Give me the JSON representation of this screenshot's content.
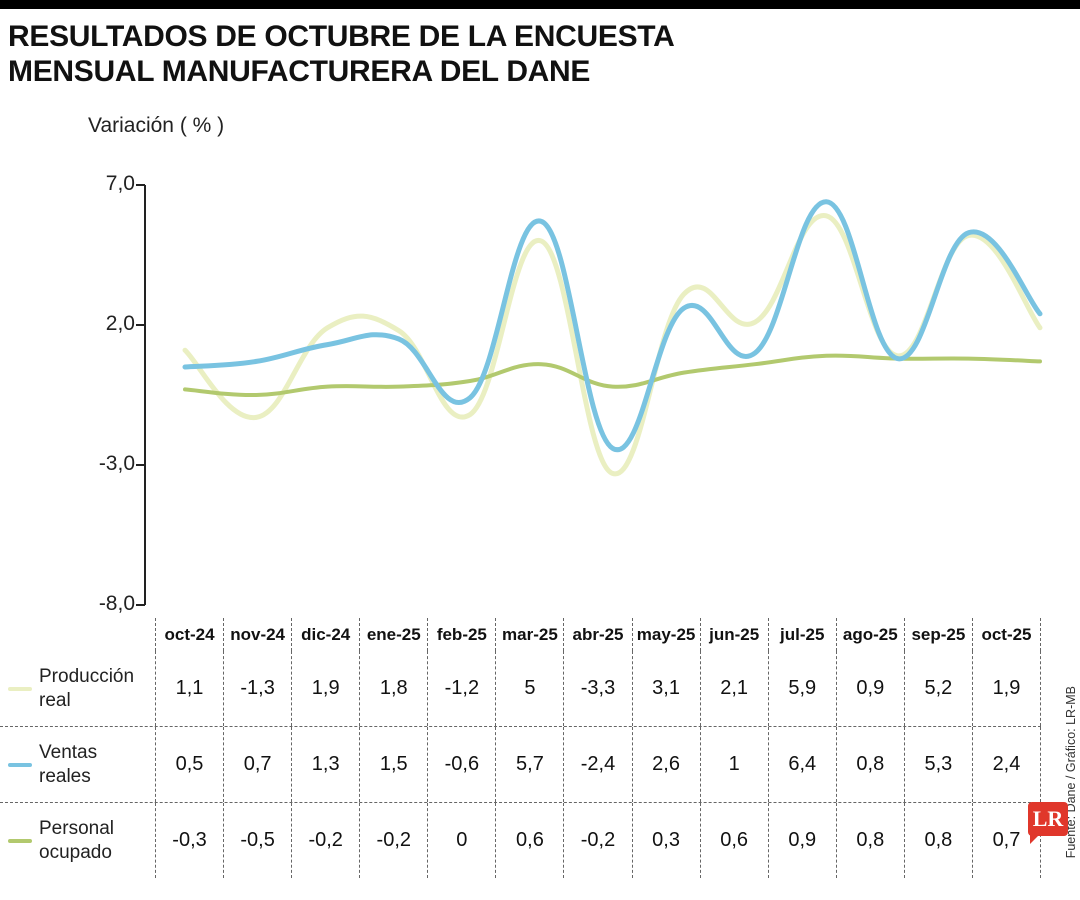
{
  "page": {
    "title_line1": "RESULTADOS DE OCTUBRE DE LA ENCUESTA",
    "title_line2": "MENSUAL MANUFACTURERA DEL DANE",
    "source_credit": "Fuente: Dane / Gráfico: LR-MB",
    "logo_text": "LR",
    "logo_color": "#e0372b"
  },
  "chart_data": {
    "type": "line",
    "title": "Resultados de octubre de la encuesta mensual manufacturera del DANE",
    "ylabel": "Variación ( % )",
    "xlabel": "",
    "ylim": [
      -8,
      7
    ],
    "grid": false,
    "legend_position": "table-left",
    "y_ticks": [
      {
        "label": "7,0",
        "value": 7
      },
      {
        "label": "2,0",
        "value": 2
      },
      {
        "label": "-3,0",
        "value": -3
      },
      {
        "label": "-8,0",
        "value": -8
      }
    ],
    "categories": [
      "oct-24",
      "nov-24",
      "dic-24",
      "ene-25",
      "feb-25",
      "mar-25",
      "abr-25",
      "may-25",
      "jun-25",
      "jul-25",
      "ago-25",
      "sep-25",
      "oct-25"
    ],
    "series": [
      {
        "name": "Producción real",
        "label_lines": [
          "Producción",
          "real"
        ],
        "color": "#eaefc2",
        "stroke_width": 5,
        "values": [
          1.1,
          -1.3,
          1.9,
          1.8,
          -1.2,
          5,
          -3.3,
          3.1,
          2.1,
          5.9,
          0.9,
          5.2,
          1.9
        ],
        "display": [
          "1,1",
          "-1,3",
          "1,9",
          "1,8",
          "-1,2",
          "5",
          "-3,3",
          "3,1",
          "2,1",
          "5,9",
          "0,9",
          "5,2",
          "1,9"
        ]
      },
      {
        "name": "Ventas reales",
        "label_lines": [
          "Ventas",
          "reales"
        ],
        "color": "#79c3e1",
        "stroke_width": 5,
        "values": [
          0.5,
          0.7,
          1.3,
          1.5,
          -0.6,
          5.7,
          -2.4,
          2.6,
          1,
          6.4,
          0.8,
          5.3,
          2.4
        ],
        "display": [
          "0,5",
          "0,7",
          "1,3",
          "1,5",
          "-0,6",
          "5,7",
          "-2,4",
          "2,6",
          "1",
          "6,4",
          "0,8",
          "5,3",
          "2,4"
        ]
      },
      {
        "name": "Personal ocupado",
        "label_lines": [
          "Personal",
          "ocupado"
        ],
        "color": "#b2c96e",
        "stroke_width": 4,
        "values": [
          -0.3,
          -0.5,
          -0.2,
          -0.2,
          0,
          0.6,
          -0.2,
          0.3,
          0.6,
          0.9,
          0.8,
          0.8,
          0.7
        ],
        "display": [
          "-0,3",
          "-0,5",
          "-0,2",
          "-0,2",
          "0",
          "0,6",
          "-0,2",
          "0,3",
          "0,6",
          "0,9",
          "0,8",
          "0,8",
          "0,7"
        ]
      }
    ],
    "draw_order": [
      0,
      2,
      1
    ]
  }
}
